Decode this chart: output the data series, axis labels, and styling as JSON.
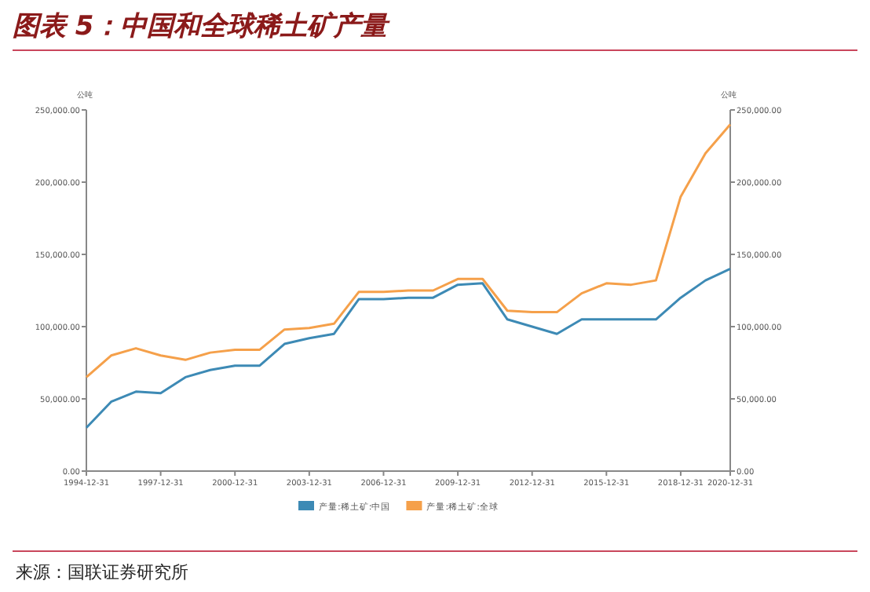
{
  "chart_data": {
    "type": "line",
    "title": "图表 5：中国和全球稀土矿产量",
    "ylabel": "公吨",
    "y2label": "公吨",
    "categories": [
      "1994-12-31",
      null,
      null,
      "1997-12-31",
      null,
      null,
      "2000-12-31",
      null,
      null,
      "2003-12-31",
      null,
      null,
      "2006-12-31",
      null,
      null,
      "2009-12-31",
      null,
      null,
      "2012-12-31",
      null,
      null,
      "2015-12-31",
      null,
      null,
      "2018-12-31",
      null,
      "2020-12-31"
    ],
    "series": [
      {
        "name": "产量:稀土矿:中国",
        "color": "#3d8ab5",
        "values": [
          30000,
          48000,
          55000,
          54000,
          65000,
          70000,
          73000,
          73000,
          88000,
          92000,
          95000,
          119000,
          119000,
          120000,
          120000,
          129000,
          130000,
          105000,
          100000,
          95000,
          105000,
          105000,
          105000,
          105000,
          120000,
          132000,
          140000
        ]
      },
      {
        "name": "产量:稀土矿:全球",
        "color": "#f5a04a",
        "values": [
          65000,
          80000,
          85000,
          80000,
          77000,
          82000,
          84000,
          84000,
          98000,
          99000,
          102000,
          124000,
          124000,
          125000,
          125000,
          133000,
          133000,
          111000,
          110000,
          110000,
          123000,
          130000,
          129000,
          132000,
          190000,
          220000,
          240000
        ]
      }
    ],
    "ylim": [
      0,
      250000
    ],
    "yticks": [
      {
        "value": 0,
        "label": "0.00"
      },
      {
        "value": 50000,
        "label": "50,000.00"
      },
      {
        "value": 100000,
        "label": "100,000.00"
      },
      {
        "value": 150000,
        "label": "150,000.00"
      },
      {
        "value": 200000,
        "label": "200,000.00"
      },
      {
        "value": 250000,
        "label": "250,000.00"
      }
    ],
    "y2lim": [
      0,
      250000
    ],
    "y2ticks": [
      {
        "value": 0,
        "label": "0.00"
      },
      {
        "value": 50000,
        "label": "50,000.00"
      },
      {
        "value": 100000,
        "label": "100,000.00"
      },
      {
        "value": 150000,
        "label": "150,000.00"
      },
      {
        "value": 200000,
        "label": "200,000.00"
      },
      {
        "value": 250000,
        "label": "250,000.00"
      }
    ],
    "legend": "bottom",
    "annotations": [
      "来源：国联证券研究所"
    ]
  }
}
